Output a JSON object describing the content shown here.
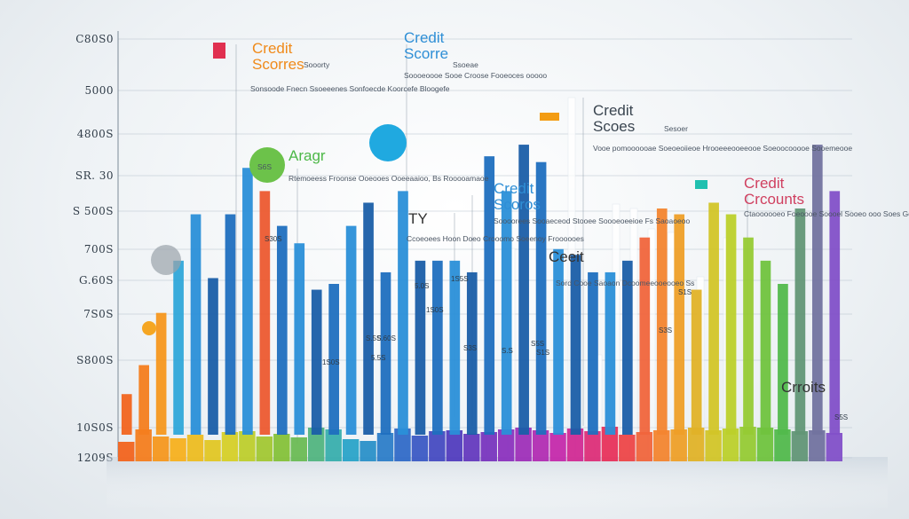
{
  "chart_data": {
    "type": "bar",
    "title": "Credit Scores",
    "y_tick_labels": [
      "C80S0",
      "5000",
      "4800S",
      "SR. 30",
      "S 500S",
      "700S",
      "G.60S",
      "7S0S",
      "S800S",
      "10S0S",
      "1209S"
    ],
    "bar_labels": [
      "S30S",
      "1S0S",
      "5.5S",
      "S.5S",
      "5.60S",
      "5.0S",
      "1S5S",
      "1S0S",
      "S3S",
      "S.S",
      "S5S",
      "S1S",
      "S3S",
      "S1S",
      "S5S"
    ],
    "series": [
      {
        "values": [
          14,
          28,
          20,
          18,
          22,
          16,
          25,
          26,
          20,
          23,
          19,
          30,
          28,
          17,
          15,
          24,
          29,
          21,
          26,
          27,
          23,
          25,
          28,
          30,
          27,
          24,
          29,
          26,
          31,
          22,
          25,
          27,
          28,
          30,
          27,
          29,
          31,
          30,
          28,
          26,
          27,
          24
        ]
      },
      {
        "values": [
          70,
          120,
          210,
          300,
          380,
          270,
          380,
          460,
          420,
          360,
          330,
          250,
          260,
          360,
          400,
          280,
          420,
          300,
          300,
          300,
          280,
          480,
          420,
          500,
          470,
          320,
          310,
          280,
          280,
          300,
          340,
          390,
          380,
          250,
          400,
          380,
          340,
          300,
          260,
          390,
          500,
          420
        ]
      }
    ],
    "annotations": [
      {
        "heading": "Credit Scorres",
        "badge": "Sooorty",
        "body": "Sonsoode Fnecn Ssoeeenes Sonfoecde Koorcefe Bloogefe",
        "color": "#f08a1a"
      },
      {
        "heading": "Credit Scorre",
        "badge": "Ssoeae",
        "body": "Soooeoooe Sooe Croose Fooeoces ooooo",
        "color": "#2f8fd6"
      },
      {
        "heading": "Aragr",
        "badge": "S6S",
        "body": "Rtemoeess Froonse Ooeooes Ooeeaaioo, Bs Rooooamaoe",
        "color": "#4db848"
      },
      {
        "heading": "Credit Scoes",
        "badge": "Sesoer",
        "body": "Vooe pomoooooae Soeoeoiieoe Hrooeeeooeeooe Soeoocooooe Sooemeooe",
        "color": "#3a4550"
      },
      {
        "heading": "Credit Scoros",
        "badge": "",
        "body": "Soooorees Sooaeceod Stooee Soooeoeeioe Fs Saoaoeoo",
        "color": "#2f8fd6"
      },
      {
        "heading": "TY",
        "badge": "",
        "body": "Ccoeoees Hoon Doeo Crooomo Soeenoy Froooooes",
        "color": "#333333"
      },
      {
        "heading": "Ceeit",
        "badge": "",
        "body": "Sord Cooe Saoaon Dcoomeeooeooeo Ss",
        "color": "#333333"
      },
      {
        "heading": "Credit Crcounts",
        "badge": "",
        "body": "Ctaoooooeo Foeoooe Soooel Sooeo ooo Soes Goeoooeon",
        "color": "#d04060"
      },
      {
        "heading": "Crroits",
        "badge": "",
        "body": "",
        "color": "#333333"
      }
    ]
  }
}
